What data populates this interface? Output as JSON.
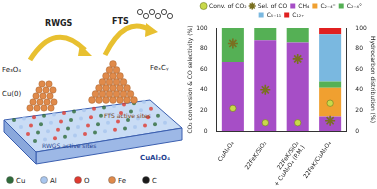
{
  "diagram": {
    "process_left": "RWGS",
    "process_right": "FTS",
    "oxide_phase": "Fe₃O₄",
    "carbide_phase": "FeₓCᵧ",
    "metal": "Cu(0)",
    "rwgs_sites": "RWGS active sites",
    "fts_sites": "FTS active sites",
    "support": "CuAl₂O₄",
    "atoms": [
      {
        "label": "Cu",
        "color": "#2f6b3a"
      },
      {
        "label": "Al",
        "color": "#a9c6ee"
      },
      {
        "label": "O",
        "color": "#e03a2f"
      },
      {
        "label": "Fe",
        "color": "#e08a4a"
      },
      {
        "label": "C",
        "color": "#1a1a1a"
      }
    ]
  },
  "chart_data": {
    "type": "bar",
    "stacked": true,
    "grid": false,
    "legend": "top",
    "categories": [
      "CuAl₂O₄",
      "22FeK/SiO₂",
      "22FeK/SiO₂ + CuAl₂O₄ (P.M.)",
      "22FeK/CuAl₂O₄"
    ],
    "y_label": "CO₂ conversion & CO selectivity (%)",
    "y2_label": "Hydrocarbon distribution (%)",
    "ylim": [
      0,
      100
    ],
    "yticks": [
      0,
      20,
      40,
      60,
      80,
      100
    ],
    "y2lim": [
      0,
      100
    ],
    "y2ticks": [
      0,
      20,
      40,
      60,
      80,
      100
    ],
    "series": [
      {
        "name": "Conv. of CO₂",
        "type": "scatter",
        "marker": "circle",
        "axis": "y",
        "color": "#c9d94a",
        "values": [
          22,
          8,
          8,
          27
        ]
      },
      {
        "name": "Sel. of CO",
        "type": "scatter",
        "marker": "star",
        "axis": "y",
        "color": "#e6dc50",
        "values": [
          85,
          40,
          70,
          10
        ]
      },
      {
        "name": "CH₄",
        "axis": "y2",
        "color": "#a64ec6",
        "values": [
          67,
          88,
          86,
          14
        ]
      },
      {
        "name": "C₂₋₄⁼",
        "axis": "y2",
        "color": "#f0a030",
        "values": [
          0,
          0,
          0,
          28
        ]
      },
      {
        "name": "C₂₋₄°",
        "axis": "y2",
        "color": "#55b055",
        "values": [
          33,
          12,
          14,
          6
        ]
      },
      {
        "name": "C₅₋₁₁",
        "axis": "y2",
        "color": "#7ab8e0",
        "values": [
          0,
          0,
          0,
          46
        ]
      },
      {
        "name": "C₁₂₊",
        "axis": "y2",
        "color": "#e02020",
        "values": [
          0,
          0,
          0,
          6
        ]
      }
    ]
  }
}
